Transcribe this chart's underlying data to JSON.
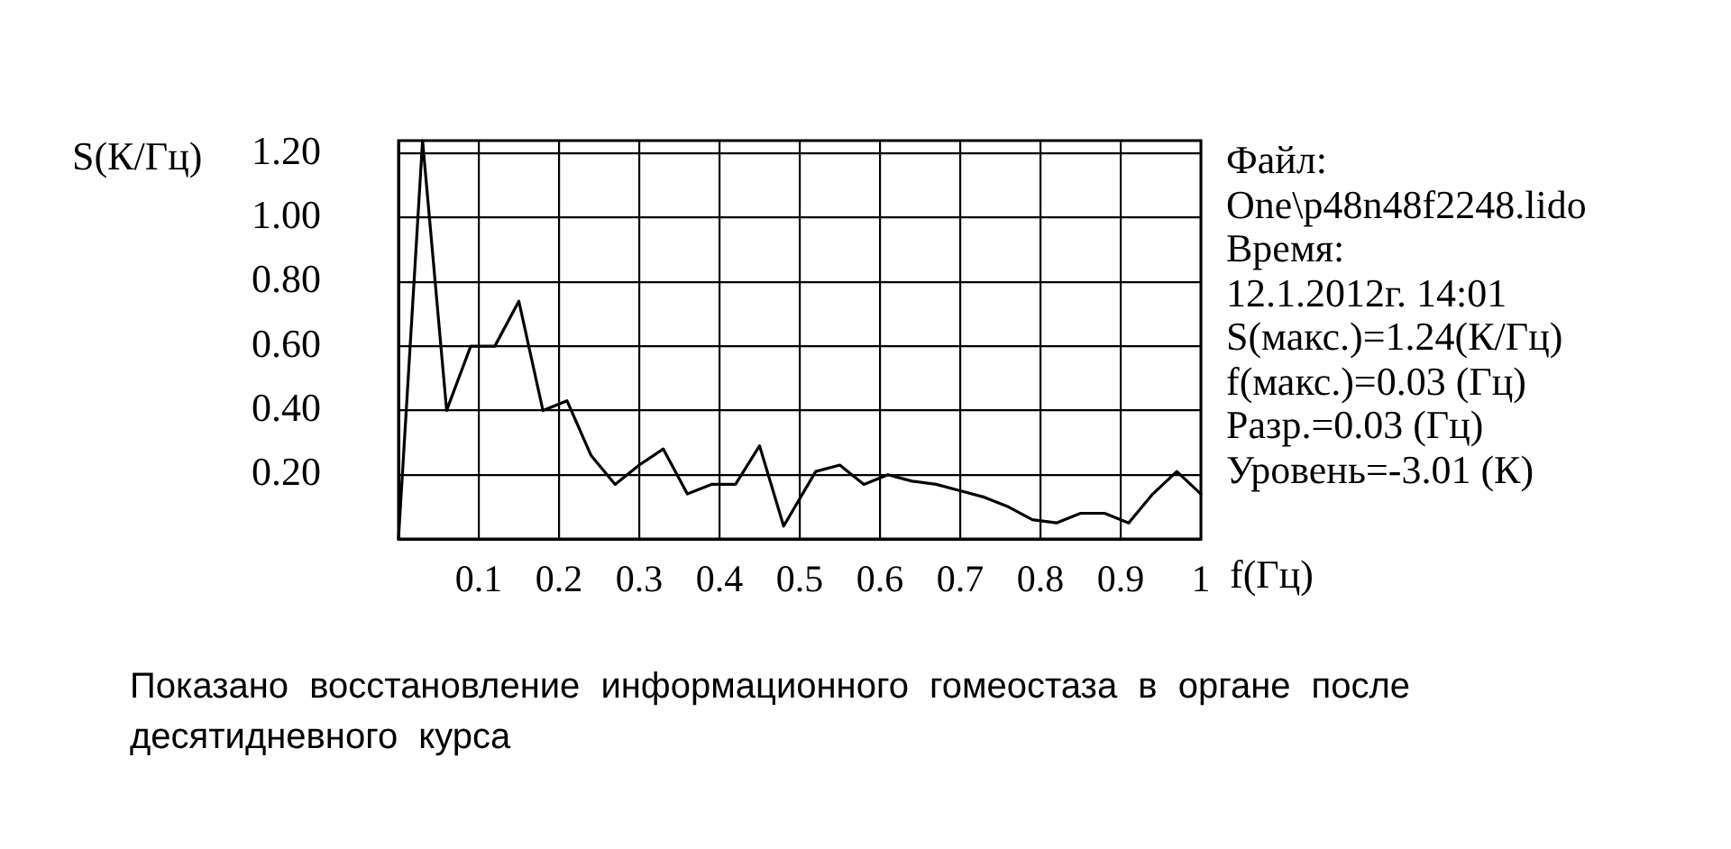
{
  "chart_data": {
    "type": "line",
    "ylabel": "S(К/Гц)",
    "xlabel": "f(Гц)",
    "x": [
      0,
      0.03,
      0.06,
      0.09,
      0.12,
      0.15,
      0.18,
      0.21,
      0.24,
      0.27,
      0.3,
      0.33,
      0.36,
      0.39,
      0.42,
      0.45,
      0.48,
      0.52,
      0.55,
      0.58,
      0.61,
      0.64,
      0.67,
      0.7,
      0.73,
      0.76,
      0.79,
      0.82,
      0.85,
      0.88,
      0.91,
      0.94,
      0.97,
      1.0
    ],
    "values": [
      0,
      1.24,
      0.4,
      0.6,
      0.6,
      0.74,
      0.4,
      0.43,
      0.26,
      0.17,
      0.23,
      0.28,
      0.14,
      0.17,
      0.17,
      0.29,
      0.04,
      0.21,
      0.23,
      0.17,
      0.2,
      0.18,
      0.17,
      0.15,
      0.13,
      0.1,
      0.06,
      0.05,
      0.08,
      0.08,
      0.05,
      0.14,
      0.21,
      0.14
    ],
    "color": "#000000",
    "line_style": "solid",
    "xlim": [
      0,
      1
    ],
    "ylim": [
      0,
      1.24
    ],
    "xticks": [
      0.1,
      0.2,
      0.3,
      0.4,
      0.5,
      0.6,
      0.7,
      0.8,
      0.9,
      1
    ],
    "yticks": [
      {
        "value": 0.2,
        "label": "0.20"
      },
      {
        "value": 0.4,
        "label": "0.40"
      },
      {
        "value": 0.6,
        "label": "0.60"
      },
      {
        "value": 0.8,
        "label": "0.80"
      },
      {
        "value": 1.0,
        "label": "1.00"
      },
      {
        "value": 1.2,
        "label": "1.20"
      }
    ],
    "grid": true,
    "annotations": [
      "Файл:",
      "One\\p48n48f2248.lido",
      "Время:",
      "12.1.2012г. 14:01",
      "S(макс.)=1.24(К/Гц)",
      "f(макс.)=0.03 (Гц)",
      "Разр.=0.03 (Гц)",
      "Уровень=-3.01 (К)",
      "Показано восстановление информационного гомеостаза в органе после десятидневного курса"
    ]
  }
}
